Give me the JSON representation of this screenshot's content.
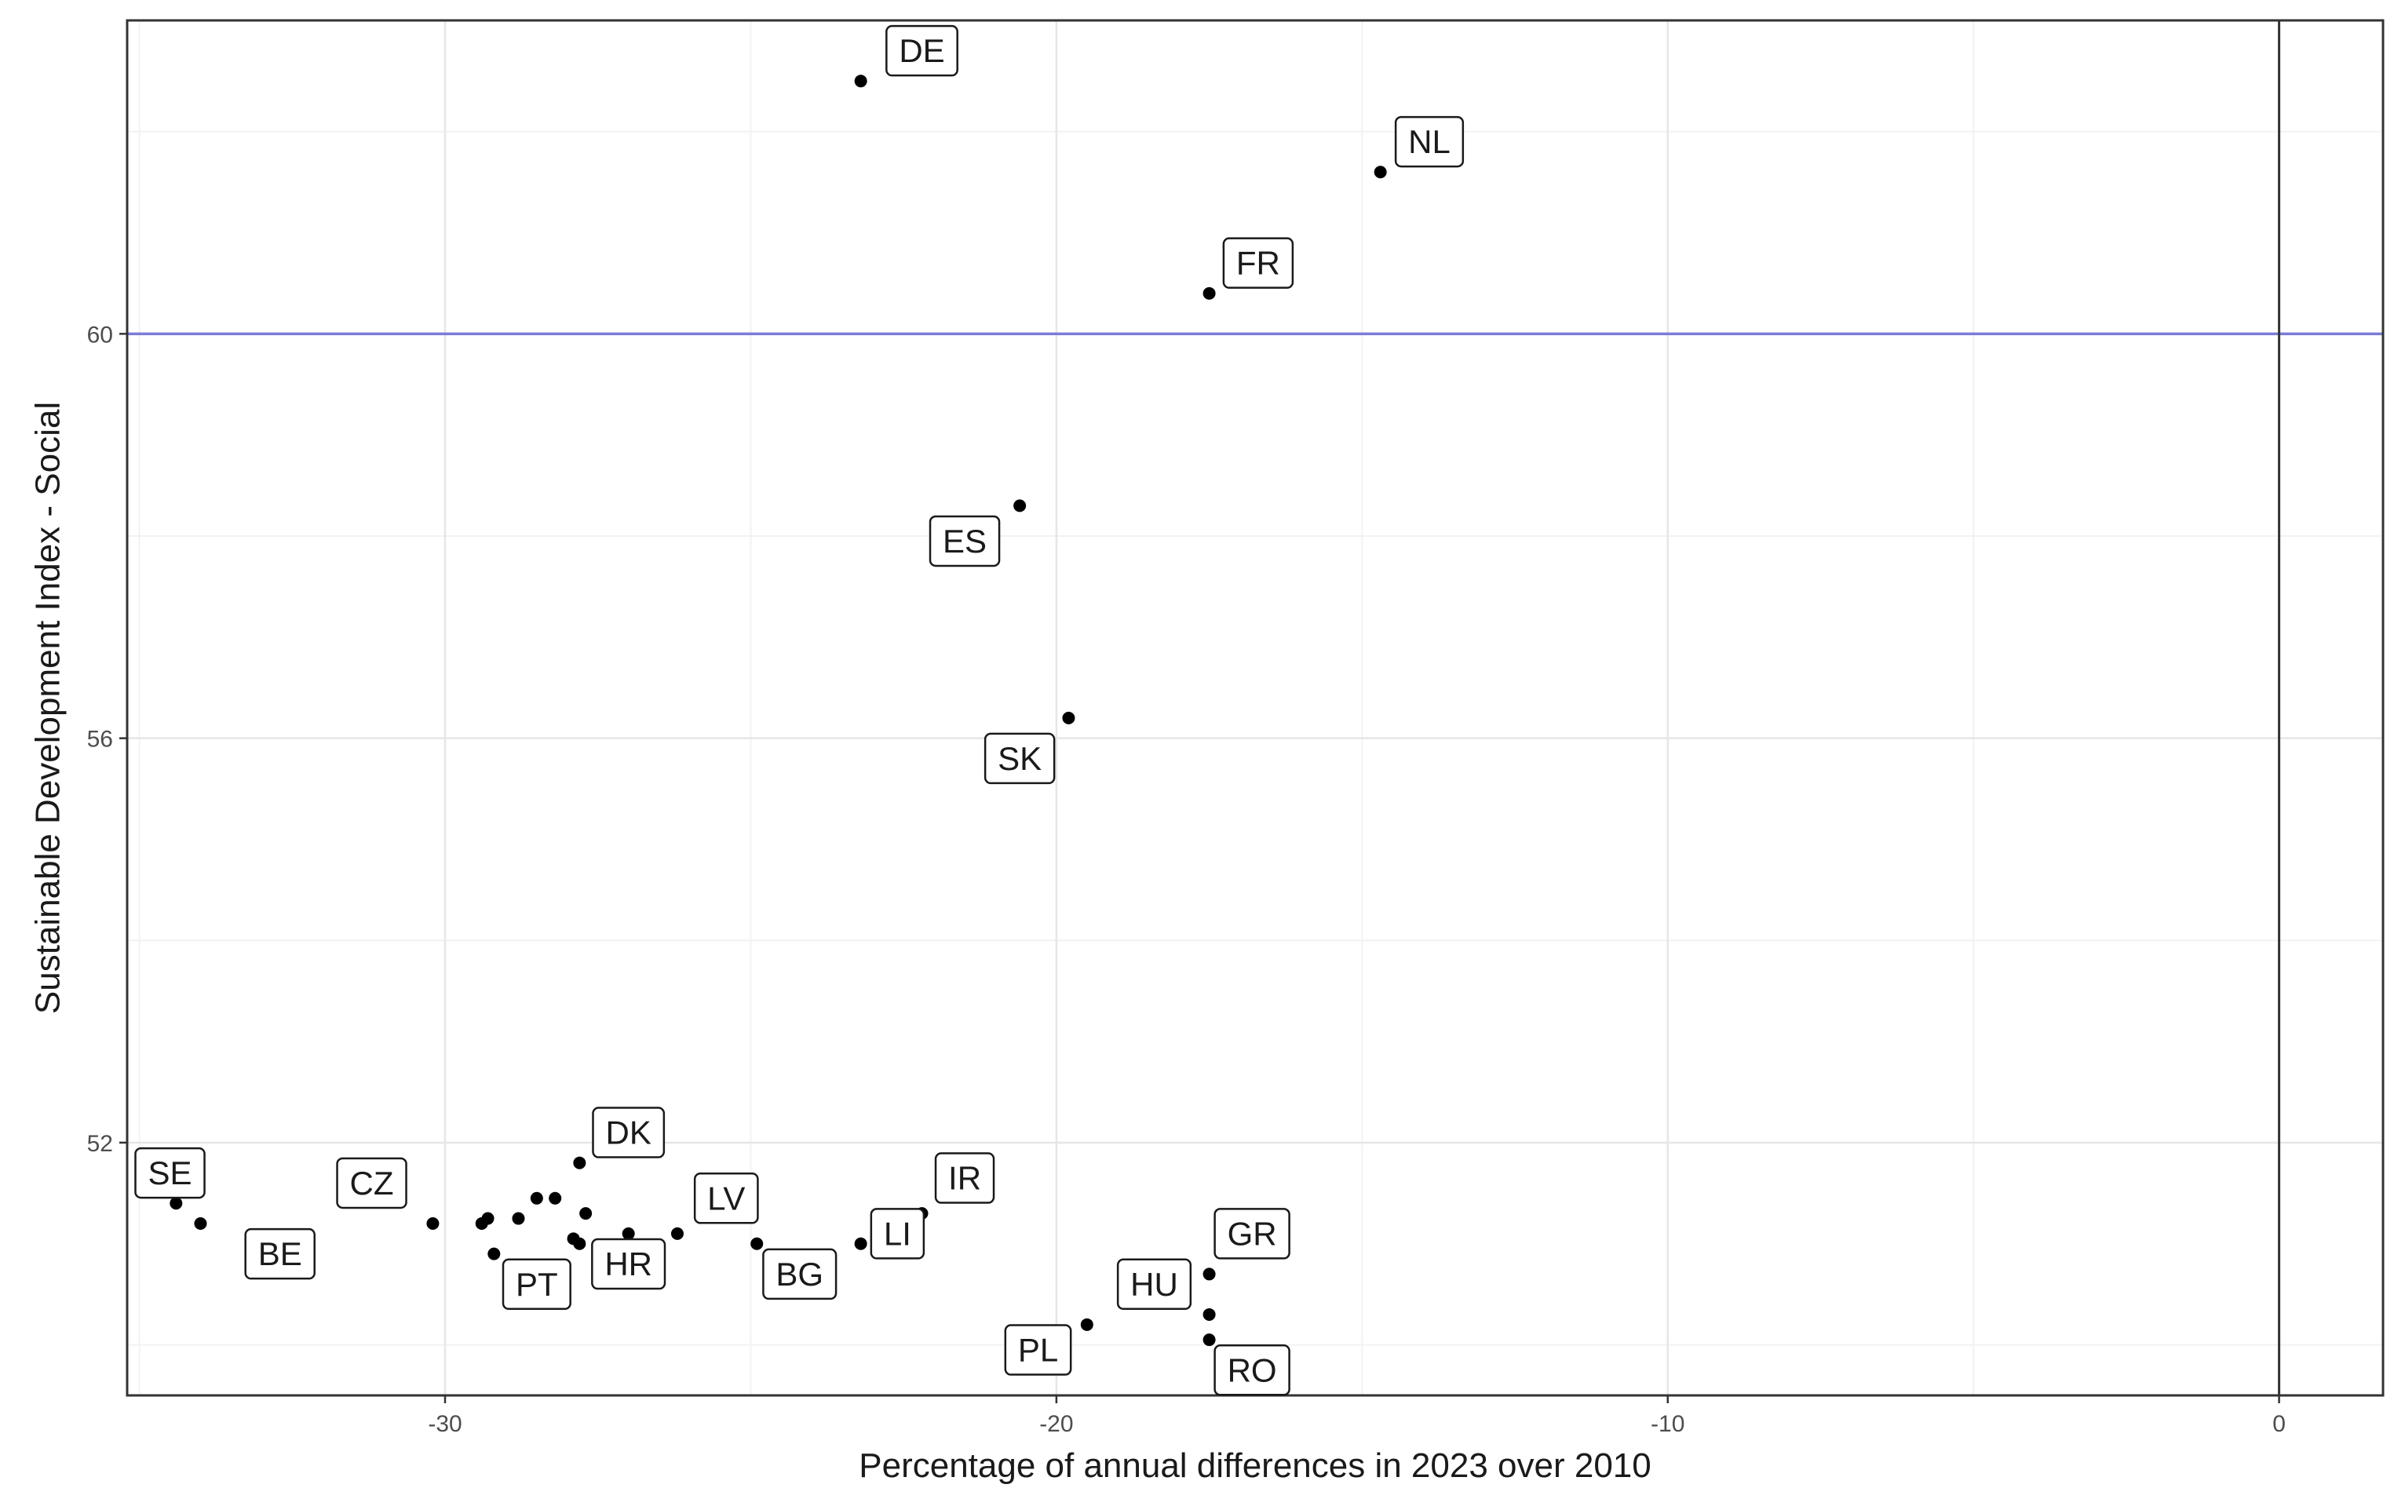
{
  "chart_data": {
    "type": "scatter",
    "title": "",
    "xlabel": "Percentage of annual differences in 2023 over 2010",
    "ylabel": "Sustainable Development Index - Social",
    "xlim": [
      -35.2,
      1.7
    ],
    "ylim": [
      49.5,
      63.1
    ],
    "x_ticks": [
      -30,
      -20,
      -10,
      0
    ],
    "y_ticks": [
      52,
      56,
      60
    ],
    "grid": true,
    "reference_lines": [
      {
        "orientation": "horizontal",
        "value": 60,
        "color": "#7b7bd9"
      },
      {
        "orientation": "vertical",
        "value": 0,
        "color": "#333333"
      }
    ],
    "labels": [
      "DE",
      "NL",
      "FR",
      "ES",
      "SK",
      "DK",
      "SE",
      "CZ",
      "LV",
      "IR",
      "LI",
      "GR",
      "HU",
      "BE",
      "PT",
      "HR",
      "BG",
      "PL",
      "RO"
    ],
    "points": [
      {
        "x": -23.2,
        "y": 62.5
      },
      {
        "x": -14.7,
        "y": 61.6
      },
      {
        "x": -17.5,
        "y": 60.4
      },
      {
        "x": -20.6,
        "y": 58.3
      },
      {
        "x": -19.8,
        "y": 56.2
      },
      {
        "x": -27.8,
        "y": 51.8
      },
      {
        "x": -34.4,
        "y": 51.4
      },
      {
        "x": -30.2,
        "y": 51.2
      },
      {
        "x": -26.2,
        "y": 51.1
      },
      {
        "x": -22.2,
        "y": 51.3
      },
      {
        "x": -23.2,
        "y": 51.0
      },
      {
        "x": -17.5,
        "y": 50.7
      },
      {
        "x": -19.5,
        "y": 50.2
      },
      {
        "x": -34.0,
        "y": 51.2
      },
      {
        "x": -29.2,
        "y": 50.9
      },
      {
        "x": -27.0,
        "y": 51.1
      },
      {
        "x": -24.9,
        "y": 51.0
      },
      {
        "x": -17.5,
        "y": 50.3
      },
      {
        "x": -17.5,
        "y": 50.05
      },
      {
        "x": -29.4,
        "y": 51.2
      },
      {
        "x": -29.3,
        "y": 51.25
      },
      {
        "x": -28.8,
        "y": 51.25
      },
      {
        "x": -28.5,
        "y": 51.45
      },
      {
        "x": -28.2,
        "y": 51.45
      },
      {
        "x": -27.9,
        "y": 51.05
      },
      {
        "x": -27.8,
        "y": 51.0
      },
      {
        "x": -27.7,
        "y": 51.3
      }
    ],
    "annotations": [
      {
        "text": "DE",
        "x": -22.2,
        "y": 62.8
      },
      {
        "text": "NL",
        "x": -13.9,
        "y": 61.9
      },
      {
        "text": "FR",
        "x": -16.7,
        "y": 60.7
      },
      {
        "text": "ES",
        "x": -21.5,
        "y": 57.95
      },
      {
        "text": "SK",
        "x": -20.6,
        "y": 55.8
      },
      {
        "text": "DK",
        "x": -27.0,
        "y": 52.1
      },
      {
        "text": "SE",
        "x": -34.5,
        "y": 51.7
      },
      {
        "text": "CZ",
        "x": -31.2,
        "y": 51.6
      },
      {
        "text": "LV",
        "x": -25.4,
        "y": 51.45
      },
      {
        "text": "IR",
        "x": -21.5,
        "y": 51.65
      },
      {
        "text": "LI",
        "x": -22.6,
        "y": 51.1
      },
      {
        "text": "GR",
        "x": -16.8,
        "y": 51.1
      },
      {
        "text": "HU",
        "x": -18.4,
        "y": 50.6
      },
      {
        "text": "BE",
        "x": -32.7,
        "y": 50.9
      },
      {
        "text": "PT",
        "x": -28.5,
        "y": 50.6
      },
      {
        "text": "HR",
        "x": -27.0,
        "y": 50.8
      },
      {
        "text": "BG",
        "x": -24.2,
        "y": 50.7
      },
      {
        "text": "PL",
        "x": -20.3,
        "y": 49.95
      },
      {
        "text": "RO",
        "x": -16.8,
        "y": 49.75
      }
    ]
  }
}
